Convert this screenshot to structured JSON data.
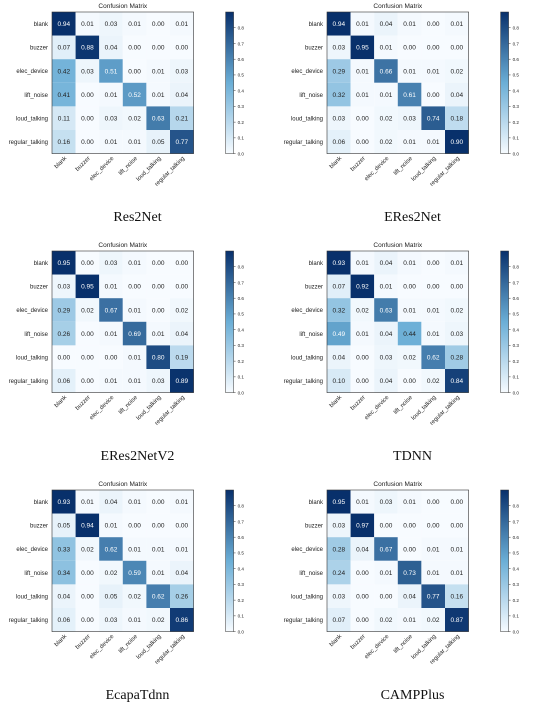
{
  "figure": {
    "chart_title": "Confusion Matrix",
    "labels": [
      "blank",
      "buzzer",
      "elec_device",
      "lift_noise",
      "loud_talking",
      "regular_talking"
    ],
    "colorbar_ticks": [
      "0.0",
      "0.1",
      "0.2",
      "0.3",
      "0.4",
      "0.5",
      "0.6",
      "0.7",
      "0.8"
    ],
    "colormap": {
      "low": "#f7fbff",
      "mid": "#6baed6",
      "high": "#08306b"
    }
  },
  "chart_data": [
    {
      "type": "heatmap",
      "title": "Confusion Matrix",
      "caption": "Res2Net",
      "rows": [
        "blank",
        "buzzer",
        "elec_device",
        "lift_noise",
        "loud_talking",
        "regular_talking"
      ],
      "cols": [
        "blank",
        "buzzer",
        "elec_device",
        "lift_noise",
        "loud_talking",
        "regular_talking"
      ],
      "values": [
        [
          0.94,
          0.01,
          0.03,
          0.01,
          0.0,
          0.01
        ],
        [
          0.07,
          0.88,
          0.04,
          0.0,
          0.0,
          0.0
        ],
        [
          0.42,
          0.03,
          0.51,
          0.0,
          0.01,
          0.03
        ],
        [
          0.41,
          0.0,
          0.01,
          0.52,
          0.01,
          0.04
        ],
        [
          0.11,
          0.0,
          0.03,
          0.02,
          0.63,
          0.21
        ],
        [
          0.16,
          0.0,
          0.01,
          0.01,
          0.05,
          0.77
        ]
      ],
      "colorbar_range": [
        0,
        0.9
      ]
    },
    {
      "type": "heatmap",
      "title": "Confusion Matrix",
      "caption": "ERes2Net",
      "rows": [
        "blank",
        "buzzer",
        "elec_device",
        "lift_noise",
        "loud_talking",
        "regular_talking"
      ],
      "cols": [
        "blank",
        "buzzer",
        "elec_device",
        "lift_noise",
        "loud_talking",
        "regular_talking"
      ],
      "values": [
        [
          0.94,
          0.01,
          0.04,
          0.01,
          0.0,
          0.01
        ],
        [
          0.03,
          0.95,
          0.01,
          0.0,
          0.0,
          0.0
        ],
        [
          0.29,
          0.01,
          0.66,
          0.01,
          0.01,
          0.02
        ],
        [
          0.32,
          0.01,
          0.01,
          0.61,
          0.0,
          0.04
        ],
        [
          0.03,
          0.0,
          0.02,
          0.03,
          0.74,
          0.18
        ],
        [
          0.06,
          0.0,
          0.02,
          0.01,
          0.01,
          0.9
        ]
      ],
      "colorbar_range": [
        0,
        0.9
      ]
    },
    {
      "type": "heatmap",
      "title": "Confusion Matrix",
      "caption": "ERes2NetV2",
      "rows": [
        "blank",
        "buzzer",
        "elec_device",
        "lift_noise",
        "loud_talking",
        "regular_talking"
      ],
      "cols": [
        "blank",
        "buzzer",
        "elec_device",
        "lift_noise",
        "loud_talking",
        "regular_talking"
      ],
      "values": [
        [
          0.95,
          0.0,
          0.03,
          0.01,
          0.0,
          0.0
        ],
        [
          0.03,
          0.95,
          0.01,
          0.0,
          0.0,
          0.0
        ],
        [
          0.29,
          0.02,
          0.67,
          0.01,
          0.0,
          0.02
        ],
        [
          0.26,
          0.0,
          0.01,
          0.69,
          0.01,
          0.04
        ],
        [
          0.0,
          0.0,
          0.0,
          0.01,
          0.8,
          0.19
        ],
        [
          0.06,
          0.0,
          0.01,
          0.01,
          0.03,
          0.89
        ]
      ],
      "colorbar_range": [
        0,
        0.9
      ]
    },
    {
      "type": "heatmap",
      "title": "Confusion Matrix",
      "caption": "TDNN",
      "rows": [
        "blank",
        "buzzer",
        "elec_device",
        "lift_noise",
        "loud_talking",
        "regular_talking"
      ],
      "cols": [
        "blank",
        "buzzer",
        "elec_device",
        "lift_noise",
        "loud_talking",
        "regular_talking"
      ],
      "values": [
        [
          0.93,
          0.01,
          0.04,
          0.01,
          0.0,
          0.01
        ],
        [
          0.07,
          0.92,
          0.01,
          0.0,
          0.0,
          0.0
        ],
        [
          0.32,
          0.02,
          0.63,
          0.01,
          0.01,
          0.02
        ],
        [
          0.49,
          0.01,
          0.04,
          0.44,
          0.01,
          0.03
        ],
        [
          0.04,
          0.0,
          0.03,
          0.02,
          0.62,
          0.28
        ],
        [
          0.1,
          0.0,
          0.04,
          0.0,
          0.02,
          0.84
        ]
      ],
      "colorbar_range": [
        0,
        0.9
      ]
    },
    {
      "type": "heatmap",
      "title": "Confusion Matrix",
      "caption": "EcapaTdnn",
      "rows": [
        "blank",
        "buzzer",
        "elec_device",
        "lift_noise",
        "loud_talking",
        "regular_talking"
      ],
      "cols": [
        "blank",
        "buzzer",
        "elec_device",
        "lift_noise",
        "loud_talking",
        "regular_talking"
      ],
      "values": [
        [
          0.93,
          0.01,
          0.04,
          0.01,
          0.0,
          0.01
        ],
        [
          0.05,
          0.94,
          0.01,
          0.0,
          0.0,
          0.0
        ],
        [
          0.33,
          0.02,
          0.62,
          0.01,
          0.01,
          0.01
        ],
        [
          0.34,
          0.0,
          0.02,
          0.59,
          0.01,
          0.04
        ],
        [
          0.04,
          0.0,
          0.05,
          0.02,
          0.62,
          0.26
        ],
        [
          0.06,
          0.0,
          0.03,
          0.01,
          0.02,
          0.86
        ]
      ],
      "colorbar_range": [
        0,
        0.9
      ]
    },
    {
      "type": "heatmap",
      "title": "Confusion Matrix",
      "caption": "CAMPPlus",
      "rows": [
        "blank",
        "buzzer",
        "elec_device",
        "lift_noise",
        "loud_talking",
        "regular_talking"
      ],
      "cols": [
        "blank",
        "buzzer",
        "elec_device",
        "lift_noise",
        "loud_talking",
        "regular_talking"
      ],
      "values": [
        [
          0.95,
          0.01,
          0.03,
          0.01,
          0.0,
          0.0
        ],
        [
          0.03,
          0.97,
          0.0,
          0.0,
          0.0,
          0.0
        ],
        [
          0.28,
          0.04,
          0.67,
          0.0,
          0.01,
          0.01
        ],
        [
          0.24,
          0.0,
          0.01,
          0.73,
          0.01,
          0.01
        ],
        [
          0.03,
          0.0,
          0.0,
          0.04,
          0.77,
          0.16
        ],
        [
          0.07,
          0.0,
          0.02,
          0.01,
          0.02,
          0.87
        ]
      ],
      "colorbar_range": [
        0,
        0.9
      ]
    }
  ]
}
